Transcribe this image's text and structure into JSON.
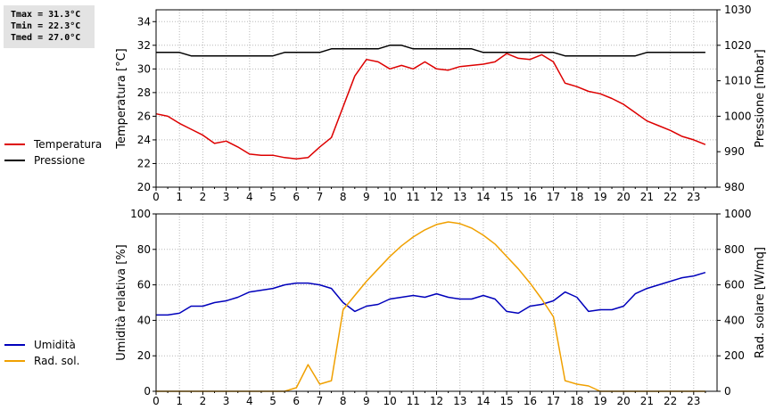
{
  "stats": {
    "tmax": "Tmax = 31.3°C",
    "tmin": "Tmin = 22.3°C",
    "tmed": "Tmed = 27.0°C"
  },
  "colors": {
    "temperature": "#dd0000",
    "pressure": "#000000",
    "humidity": "#0000bb",
    "solar": "#f0a000",
    "grid": "#b8b8b8"
  },
  "chart_data": [
    {
      "type": "line",
      "xlim": [
        0,
        24
      ],
      "x_ticks": [
        0,
        1,
        2,
        3,
        4,
        5,
        6,
        7,
        8,
        9,
        10,
        11,
        12,
        13,
        14,
        15,
        16,
        17,
        18,
        19,
        20,
        21,
        22,
        23
      ],
      "ylabel": "Temperatura [°C]",
      "ylim": [
        20,
        35
      ],
      "y_ticks": [
        20,
        22,
        24,
        26,
        28,
        30,
        32,
        34
      ],
      "y2label": "Pressione [mbar]",
      "y2lim": [
        980,
        1030
      ],
      "y2_ticks": [
        980,
        990,
        1000,
        1010,
        1020,
        1030
      ],
      "grid": true,
      "legend_position": "left",
      "series": [
        {
          "name": "Temperatura",
          "axis": "left",
          "x": [
            0,
            0.5,
            1,
            1.5,
            2,
            2.5,
            3,
            3.5,
            4,
            4.5,
            5,
            5.5,
            6,
            6.5,
            7,
            7.5,
            8,
            8.5,
            9,
            9.5,
            10,
            10.5,
            11,
            11.5,
            12,
            12.5,
            13,
            13.5,
            14,
            14.5,
            15,
            15.5,
            16,
            16.5,
            17,
            17.5,
            18,
            18.5,
            19,
            19.5,
            20,
            20.5,
            21,
            21.5,
            22,
            22.5,
            23,
            23.5
          ],
          "values": [
            26.2,
            26.0,
            25.4,
            24.9,
            24.4,
            23.7,
            23.9,
            23.4,
            22.8,
            22.7,
            22.7,
            22.5,
            22.4,
            22.5,
            23.4,
            24.2,
            26.8,
            29.4,
            30.8,
            30.6,
            30.0,
            30.3,
            30.0,
            30.6,
            30.0,
            29.9,
            30.2,
            30.3,
            30.4,
            30.6,
            31.3,
            30.9,
            30.8,
            31.2,
            30.6,
            28.8,
            28.5,
            28.1,
            27.9,
            27.5,
            27.0,
            26.3,
            25.6,
            25.2,
            24.8,
            24.3,
            24.0,
            23.6
          ]
        },
        {
          "name": "Pressione",
          "axis": "right",
          "x": [
            0,
            1,
            1.5,
            2,
            3,
            4,
            5,
            5.5,
            6,
            7,
            7.5,
            8,
            9,
            9.5,
            10,
            10.5,
            11,
            11.5,
            12,
            13,
            13.5,
            14,
            15,
            16,
            16.5,
            17,
            17.5,
            18,
            19,
            20,
            20.5,
            21,
            21.5,
            22,
            23,
            23.5
          ],
          "values": [
            1018,
            1018,
            1017,
            1017,
            1017,
            1017,
            1017,
            1018,
            1018,
            1018,
            1019,
            1019,
            1019,
            1019,
            1020,
            1020,
            1019,
            1019,
            1019,
            1019,
            1019,
            1018,
            1018,
            1018,
            1018,
            1018,
            1017,
            1017,
            1017,
            1017,
            1017,
            1018,
            1018,
            1018,
            1018,
            1018
          ]
        }
      ]
    },
    {
      "type": "line",
      "xlim": [
        0,
        24
      ],
      "x_ticks": [
        0,
        1,
        2,
        3,
        4,
        5,
        6,
        7,
        8,
        9,
        10,
        11,
        12,
        13,
        14,
        15,
        16,
        17,
        18,
        19,
        20,
        21,
        22,
        23
      ],
      "ylabel": "Umidità relativa [%]",
      "ylim": [
        0,
        100
      ],
      "y_ticks": [
        0,
        20,
        40,
        60,
        80,
        100
      ],
      "y2label": "Rad. solare [W/mq]",
      "y2lim": [
        0,
        1000
      ],
      "y2_ticks": [
        0,
        200,
        400,
        600,
        800,
        1000
      ],
      "grid": true,
      "legend_position": "left",
      "series": [
        {
          "name": "Umidità",
          "axis": "left",
          "x": [
            0,
            0.5,
            1,
            1.5,
            2,
            2.5,
            3,
            3.5,
            4,
            4.5,
            5,
            5.5,
            6,
            6.5,
            7,
            7.5,
            8,
            8.5,
            9,
            9.5,
            10,
            10.5,
            11,
            11.5,
            12,
            12.5,
            13,
            13.5,
            14,
            14.5,
            15,
            15.5,
            16,
            16.5,
            17,
            17.5,
            18,
            18.5,
            19,
            19.5,
            20,
            20.5,
            21,
            21.5,
            22,
            22.5,
            23,
            23.5
          ],
          "values": [
            43,
            43,
            44,
            48,
            48,
            50,
            51,
            53,
            56,
            57,
            58,
            60,
            61,
            61,
            60,
            58,
            50,
            45,
            48,
            49,
            52,
            53,
            54,
            53,
            55,
            53,
            52,
            52,
            54,
            52,
            45,
            44,
            48,
            49,
            51,
            56,
            53,
            45,
            46,
            46,
            48,
            55,
            58,
            60,
            62,
            64,
            65,
            67
          ]
        },
        {
          "name": "Rad. sol.",
          "axis": "right",
          "x": [
            0,
            1,
            2,
            3,
            4,
            5,
            5.5,
            6,
            6.5,
            7,
            7.5,
            8,
            8.5,
            9,
            9.5,
            10,
            10.5,
            11,
            11.5,
            12,
            12.5,
            13,
            13.5,
            14,
            14.5,
            15,
            15.5,
            16,
            16.5,
            17,
            17.5,
            18,
            18.5,
            19,
            20,
            21,
            22,
            23,
            23.5
          ],
          "values": [
            0,
            0,
            0,
            0,
            0,
            0,
            0,
            20,
            150,
            40,
            60,
            460,
            540,
            620,
            690,
            760,
            820,
            870,
            910,
            940,
            955,
            945,
            920,
            880,
            830,
            760,
            690,
            610,
            520,
            420,
            60,
            40,
            30,
            0,
            0,
            0,
            0,
            0,
            0
          ]
        }
      ]
    }
  ]
}
